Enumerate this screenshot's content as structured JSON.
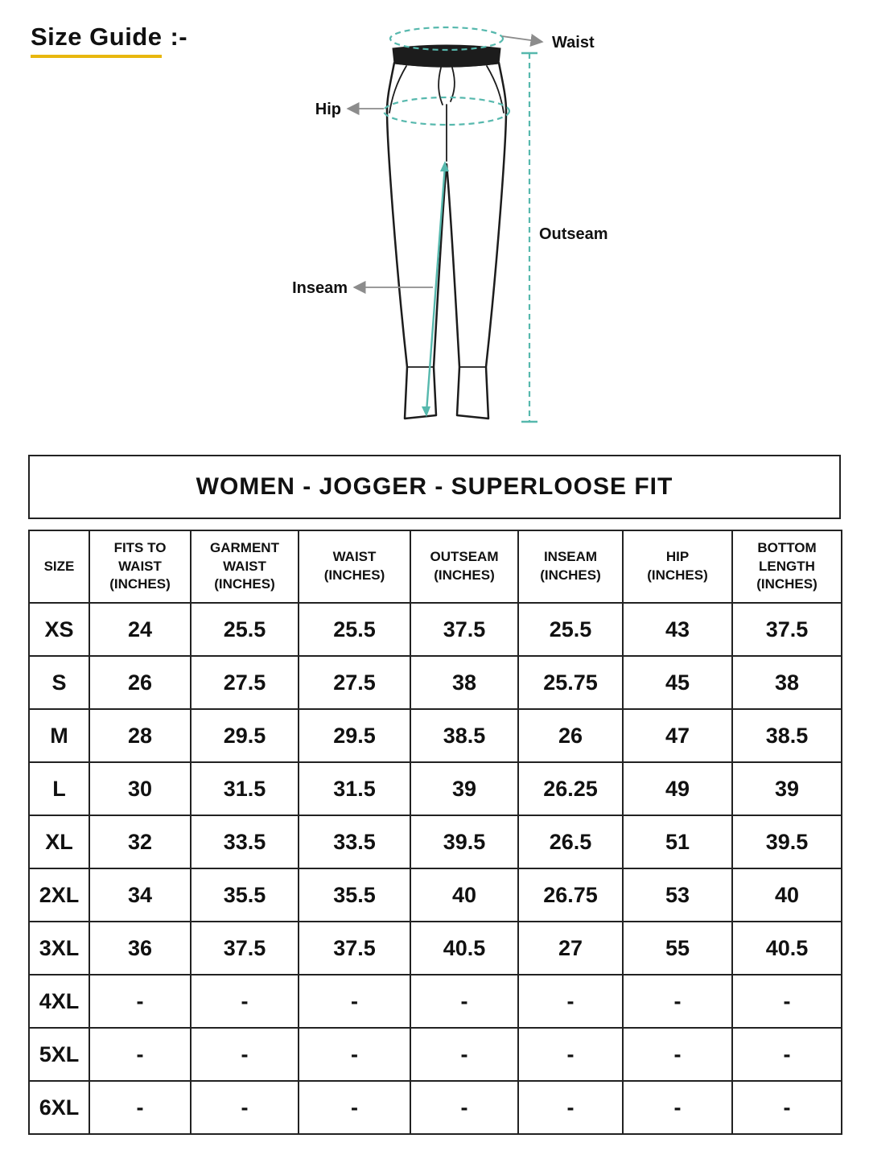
{
  "page_title": {
    "text": "Size Guide",
    "suffix": ":-"
  },
  "diagram": {
    "labels": {
      "waist": "Waist",
      "hip": "Hip",
      "outseam": "Outseam",
      "inseam": "Inseam"
    },
    "colors": {
      "measurement_teal": "#56b8ad",
      "arrow_gray": "#8c8c8c",
      "title_underline": "#e8b70e"
    }
  },
  "chart_data": {
    "type": "table",
    "title": "WOMEN - JOGGER - SUPERLOOSE FIT",
    "columns": [
      "SIZE",
      "FITS TO\nWAIST\n(INCHES)",
      "GARMENT\nWAIST\n(INCHES)",
      "WAIST\n(INCHES)",
      "OUTSEAM\n(INCHES)",
      "INSEAM\n(INCHES)",
      "HIP\n(INCHES)",
      "BOTTOM\nLENGTH\n(INCHES)"
    ],
    "rows": [
      [
        "XS",
        "24",
        "25.5",
        "25.5",
        "37.5",
        "25.5",
        "43",
        "37.5"
      ],
      [
        "S",
        "26",
        "27.5",
        "27.5",
        "38",
        "25.75",
        "45",
        "38"
      ],
      [
        "M",
        "28",
        "29.5",
        "29.5",
        "38.5",
        "26",
        "47",
        "38.5"
      ],
      [
        "L",
        "30",
        "31.5",
        "31.5",
        "39",
        "26.25",
        "49",
        "39"
      ],
      [
        "XL",
        "32",
        "33.5",
        "33.5",
        "39.5",
        "26.5",
        "51",
        "39.5"
      ],
      [
        "2XL",
        "34",
        "35.5",
        "35.5",
        "40",
        "26.75",
        "53",
        "40"
      ],
      [
        "3XL",
        "36",
        "37.5",
        "37.5",
        "40.5",
        "27",
        "55",
        "40.5"
      ],
      [
        "4XL",
        "-",
        "-",
        "-",
        "-",
        "-",
        "-",
        "-"
      ],
      [
        "5XL",
        "-",
        "-",
        "-",
        "-",
        "-",
        "-",
        "-"
      ],
      [
        "6XL",
        "-",
        "-",
        "-",
        "-",
        "-",
        "-",
        "-"
      ]
    ]
  }
}
